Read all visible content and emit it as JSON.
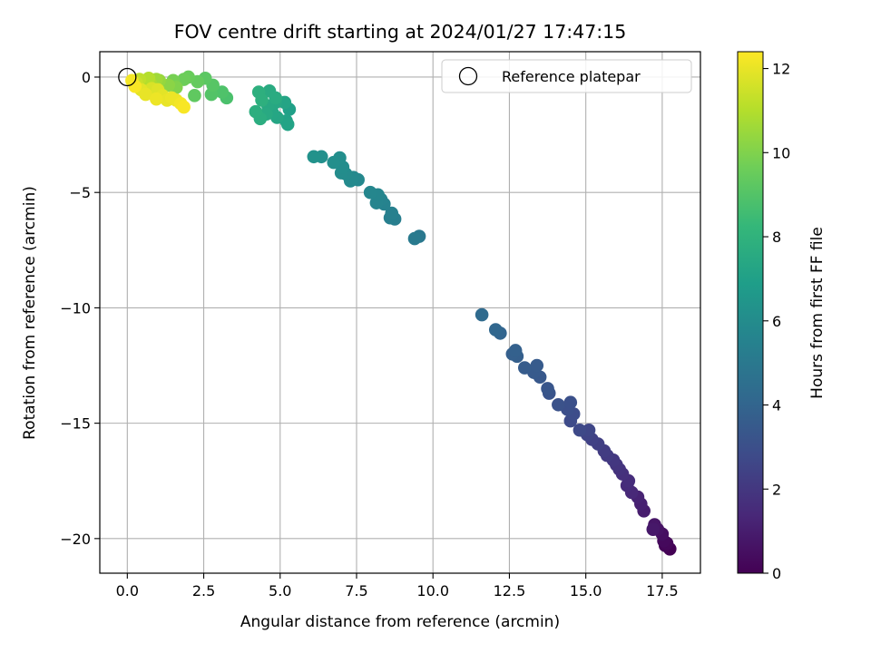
{
  "chart_data": {
    "type": "scatter",
    "title": "FOV centre drift starting at 2024/01/27 17:47:15",
    "xlabel": "Angular distance from reference (arcmin)",
    "ylabel": "Rotation from reference (arcmin)",
    "xlim": [
      -0.9,
      18.75
    ],
    "ylim": [
      -21.5,
      1.1
    ],
    "xticks": [
      0.0,
      2.5,
      5.0,
      7.5,
      10.0,
      12.5,
      15.0,
      17.5
    ],
    "xtick_labels": [
      "0.0",
      "2.5",
      "5.0",
      "7.5",
      "10.0",
      "12.5",
      "15.0",
      "17.5"
    ],
    "yticks": [
      0,
      -5,
      -10,
      -15,
      -20
    ],
    "ytick_labels": [
      "0",
      "−5",
      "−10",
      "−15",
      "−20"
    ],
    "grid": true,
    "legend": {
      "placement": "top-right",
      "entries": [
        "Reference platepar"
      ]
    },
    "reference_point": {
      "x": 0.0,
      "y": 0.0
    },
    "colorbar": {
      "label": "Hours from first FF file",
      "range": [
        0,
        12.4
      ],
      "ticks": [
        0,
        2,
        4,
        6,
        8,
        10,
        12
      ],
      "tick_labels": [
        "0",
        "2",
        "4",
        "6",
        "8",
        "10",
        "12"
      ],
      "colormap": "viridis"
    },
    "series": [
      {
        "color_by": "hours",
        "points": [
          [
            17.75,
            -20.45,
            0.0
          ],
          [
            17.6,
            -20.3,
            0.1
          ],
          [
            17.65,
            -20.2,
            0.2
          ],
          [
            17.55,
            -20.1,
            0.3
          ],
          [
            17.5,
            -19.8,
            0.5
          ],
          [
            17.35,
            -19.6,
            0.6
          ],
          [
            17.25,
            -19.4,
            0.7
          ],
          [
            17.2,
            -19.6,
            0.8
          ],
          [
            16.9,
            -18.8,
            1.0
          ],
          [
            16.8,
            -18.5,
            1.1
          ],
          [
            16.7,
            -18.2,
            1.2
          ],
          [
            16.5,
            -18.0,
            1.4
          ],
          [
            16.35,
            -17.7,
            1.5
          ],
          [
            16.4,
            -17.5,
            1.6
          ],
          [
            16.2,
            -17.2,
            1.7
          ],
          [
            16.1,
            -17.0,
            1.8
          ],
          [
            16.0,
            -16.8,
            1.9
          ],
          [
            15.9,
            -16.6,
            2.0
          ],
          [
            15.7,
            -16.4,
            2.1
          ],
          [
            15.6,
            -16.2,
            2.2
          ],
          [
            15.4,
            -15.9,
            2.3
          ],
          [
            15.2,
            -15.7,
            2.4
          ],
          [
            15.05,
            -15.5,
            2.5
          ],
          [
            15.1,
            -15.3,
            2.6
          ],
          [
            14.8,
            -15.3,
            2.7
          ],
          [
            14.5,
            -14.9,
            2.8
          ],
          [
            14.6,
            -14.6,
            2.9
          ],
          [
            14.4,
            -14.4,
            3.0
          ],
          [
            14.5,
            -14.1,
            3.05
          ],
          [
            14.1,
            -14.2,
            3.1
          ],
          [
            13.8,
            -13.7,
            3.2
          ],
          [
            13.75,
            -13.5,
            3.3
          ],
          [
            13.5,
            -13.0,
            3.4
          ],
          [
            13.3,
            -12.8,
            3.5
          ],
          [
            13.4,
            -12.5,
            3.55
          ],
          [
            13.0,
            -12.6,
            3.6
          ],
          [
            12.75,
            -12.1,
            3.7
          ],
          [
            12.6,
            -12.0,
            3.75
          ],
          [
            12.7,
            -11.85,
            3.8
          ],
          [
            12.2,
            -11.1,
            4.0
          ],
          [
            12.05,
            -10.95,
            4.1
          ],
          [
            11.6,
            -10.3,
            4.3
          ],
          [
            9.55,
            -6.9,
            5.0
          ],
          [
            9.4,
            -7.0,
            5.1
          ],
          [
            8.75,
            -6.15,
            5.3
          ],
          [
            8.6,
            -6.1,
            5.35
          ],
          [
            8.65,
            -5.9,
            5.4
          ],
          [
            8.4,
            -5.5,
            5.5
          ],
          [
            8.3,
            -5.3,
            5.55
          ],
          [
            8.15,
            -5.45,
            5.6
          ],
          [
            8.2,
            -5.1,
            5.65
          ],
          [
            7.95,
            -5.0,
            5.7
          ],
          [
            7.55,
            -4.45,
            5.8
          ],
          [
            7.4,
            -4.35,
            5.85
          ],
          [
            7.3,
            -4.5,
            5.9
          ],
          [
            7.15,
            -4.2,
            5.95
          ],
          [
            7.0,
            -4.15,
            6.0
          ],
          [
            7.05,
            -3.9,
            6.05
          ],
          [
            6.95,
            -3.5,
            6.1
          ],
          [
            6.75,
            -3.7,
            6.15
          ],
          [
            6.35,
            -3.45,
            6.2
          ],
          [
            6.1,
            -3.45,
            6.3
          ],
          [
            5.3,
            -1.4,
            7.0
          ],
          [
            5.2,
            -1.9,
            7.1
          ],
          [
            5.25,
            -2.05,
            7.15
          ],
          [
            5.15,
            -1.1,
            7.2
          ],
          [
            4.9,
            -1.75,
            7.3
          ],
          [
            4.75,
            -1.55,
            7.35
          ],
          [
            4.85,
            -1.1,
            7.4
          ],
          [
            4.6,
            -1.25,
            7.45
          ],
          [
            4.55,
            -1.6,
            7.5
          ],
          [
            4.65,
            -0.6,
            7.55
          ],
          [
            4.85,
            -0.9,
            7.6
          ],
          [
            4.35,
            -1.8,
            7.7
          ],
          [
            4.2,
            -1.5,
            7.75
          ],
          [
            4.3,
            -0.65,
            7.8
          ],
          [
            4.4,
            -1.0,
            7.85
          ],
          [
            3.25,
            -0.9,
            8.8
          ],
          [
            3.1,
            -0.65,
            8.9
          ],
          [
            2.75,
            -0.75,
            9.0
          ],
          [
            2.8,
            -0.35,
            9.1
          ],
          [
            2.55,
            -0.05,
            9.2
          ],
          [
            2.2,
            -0.8,
            9.3
          ],
          [
            2.3,
            -0.2,
            9.4
          ],
          [
            2.0,
            0.0,
            9.5
          ],
          [
            1.85,
            -0.1,
            9.6
          ],
          [
            1.5,
            -0.15,
            9.8
          ],
          [
            1.6,
            -0.45,
            10.0
          ],
          [
            1.35,
            -0.35,
            10.2
          ],
          [
            1.05,
            -0.15,
            10.4
          ],
          [
            0.95,
            -0.1,
            10.6
          ],
          [
            0.75,
            -0.25,
            10.8
          ],
          [
            0.7,
            -0.05,
            11.0
          ],
          [
            0.4,
            -0.1,
            11.2
          ],
          [
            0.3,
            -0.25,
            11.4
          ],
          [
            0.25,
            -0.35,
            11.5
          ],
          [
            0.55,
            -0.6,
            11.6
          ],
          [
            0.8,
            -0.5,
            11.7
          ],
          [
            1.0,
            -0.55,
            11.8
          ],
          [
            1.15,
            -0.8,
            11.9
          ],
          [
            1.3,
            -1.0,
            12.0
          ],
          [
            1.45,
            -0.9,
            12.05
          ],
          [
            1.6,
            -1.0,
            12.1
          ],
          [
            1.75,
            -1.15,
            12.2
          ],
          [
            1.85,
            -1.3,
            12.3
          ],
          [
            0.95,
            -0.95,
            12.1
          ],
          [
            0.6,
            -0.75,
            12.0
          ],
          [
            0.45,
            -0.55,
            11.9
          ],
          [
            0.15,
            -0.15,
            12.2
          ],
          [
            0.25,
            -0.4,
            12.3
          ]
        ]
      }
    ]
  }
}
